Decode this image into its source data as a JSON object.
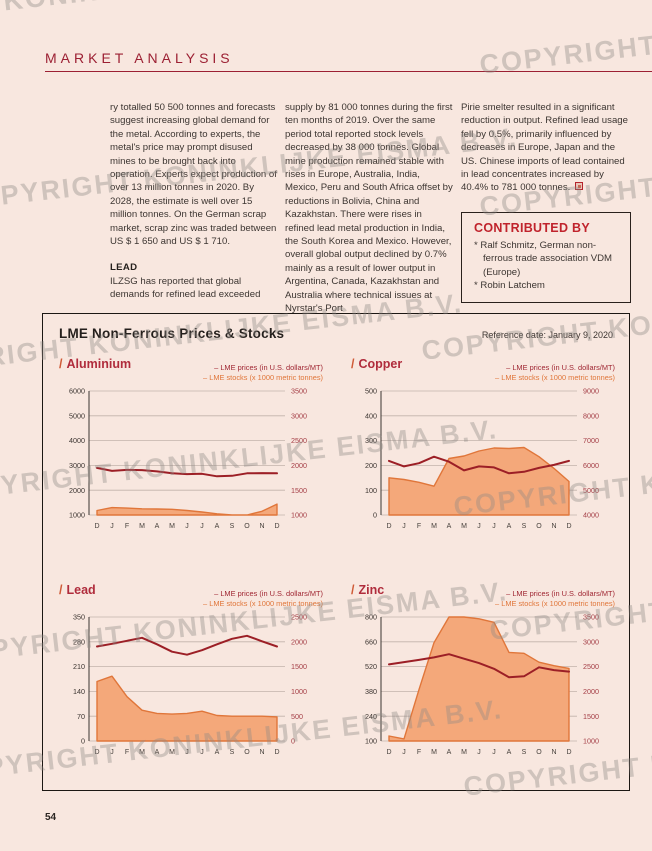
{
  "page": {
    "number": "54",
    "watermark": "COPYRIGHT KONINKLIJKE EISMA B.V."
  },
  "header": {
    "title": "MARKET ANALYSIS"
  },
  "article": {
    "col1_p1": "ry totalled 50 500 tonnes and forecasts suggest increasing global demand for the metal. According to experts, the metal's price may prompt disused mines to be brought back into operation. Experts expect production of over 13 million tonnes in 2020. By 2028, the estimate is well over 15 million tonnes. On the German scrap market, scrap zinc was traded between US $ 1 650 and US $ 1 710.",
    "col1_heading": "LEAD",
    "col1_p2": "ILZSG has reported that global demands for refined lead exceeded",
    "col2_p1": "supply by 81 000 tonnes during the first ten months of 2019. Over the same period total reported stock levels decreased by 38 000 tonnes. Global mine production remained stable with rises in Europe, Australia, India, Mexico, Peru and South Africa offset by reductions in Bolivia, China and Kazakhstan. There were rises in refined lead metal production in India, the South Korea and Mexico. However, overall global output declined by 0.7% mainly as a result of lower output in Argentina, Canada, Kazakhstan and Australia where technical issues at Nyrstar's Port",
    "col3_p1": "Pirie smelter resulted in a significant reduction in output. Refined lead usage fell by 0.5%, primarily influenced by decreases in Europe, Japan and the US. Chinese imports of lead contained in lead concentrates increased by 40.4% to 781 000 tonnes.",
    "contributed": {
      "title": "CONTRIBUTED BY",
      "bullet": "*",
      "items": [
        "Ralf Schmitz, German non-ferrous trade association VDM (Europe)",
        "Robin Latchem"
      ]
    }
  },
  "panel": {
    "title": "LME Non-Ferrous Prices & Stocks",
    "reference_date": "Reference date: January 9, 2020",
    "chart_title_prefix": "/",
    "legend_price": "– LME prices (in U.S. dollars/MT)",
    "legend_stocks": "– LME stocks (x 1000 metric tonnes)"
  },
  "colors": {
    "background": "#f8e7df",
    "accent_red": "#9c2033",
    "price_line": "#9c1f26",
    "chart_name_red": "#b02c3c",
    "stocks_orange": "#e0763a",
    "area_fill": "#f4a87a",
    "right_axis_label": "#a53f47",
    "left_axis_label": "#3c3531",
    "grid": "#c2b3ab",
    "axis_line": "#3a3530"
  },
  "chart_data": [
    {
      "type": "area",
      "name": "Aluminium",
      "x": [
        "D",
        "J",
        "F",
        "M",
        "A",
        "M",
        "J",
        "J",
        "A",
        "S",
        "O",
        "N",
        "D"
      ],
      "left_axis": {
        "label": "LME stocks (x 1000 metric tonnes)",
        "min": 1000,
        "max": 6000,
        "ticks": [
          6000,
          5000,
          4000,
          3000,
          2000,
          1000
        ]
      },
      "right_axis": {
        "label": "LME prices (in U.S. dollars/MT)",
        "min": 1000,
        "max": 3500,
        "ticks": [
          3500,
          3000,
          2500,
          2000,
          1500,
          1000
        ]
      },
      "series": [
        {
          "name": "LME stocks (x 1000 metric tonnes)",
          "type": "area",
          "axis": "left",
          "values": [
            1180,
            1300,
            1280,
            1250,
            1240,
            1230,
            1180,
            1120,
            1050,
            1000,
            1000,
            1150,
            1440
          ]
        },
        {
          "name": "LME prices (in U.S. dollars/MT)",
          "type": "line",
          "axis": "right",
          "values": [
            1950,
            1890,
            1910,
            1905,
            1880,
            1840,
            1825,
            1830,
            1780,
            1790,
            1840,
            1845,
            1840
          ]
        }
      ]
    },
    {
      "type": "area",
      "name": "Copper",
      "x": [
        "D",
        "J",
        "F",
        "M",
        "A",
        "M",
        "J",
        "J",
        "A",
        "S",
        "O",
        "N",
        "D"
      ],
      "left_axis": {
        "label": "LME stocks (x 1000 metric tonnes)",
        "min": 0,
        "max": 500,
        "ticks": [
          500,
          400,
          300,
          200,
          100,
          0
        ]
      },
      "right_axis": {
        "label": "LME prices (in U.S. dollars/MT)",
        "min": 4000,
        "max": 9000,
        "ticks": [
          9000,
          8000,
          7000,
          6000,
          5000,
          4000
        ]
      },
      "series": [
        {
          "name": "LME stocks (x 1000 metric tonnes)",
          "type": "area",
          "axis": "left",
          "values": [
            150,
            143,
            132,
            116,
            228,
            238,
            258,
            270,
            268,
            272,
            235,
            188,
            135
          ]
        },
        {
          "name": "LME prices (in U.S. dollars/MT)",
          "type": "line",
          "axis": "right",
          "values": [
            6180,
            5960,
            6090,
            6350,
            6150,
            5800,
            5960,
            5920,
            5680,
            5740,
            5900,
            6020,
            6180
          ]
        }
      ]
    },
    {
      "type": "area",
      "name": "Lead",
      "x": [
        "D",
        "J",
        "F",
        "M",
        "A",
        "M",
        "J",
        "J",
        "A",
        "S",
        "O",
        "N",
        "D"
      ],
      "left_axis": {
        "label": "LME stocks (x 1000 metric tonnes)",
        "min": 0,
        "max": 350,
        "ticks": [
          350,
          280,
          210,
          140,
          70,
          0
        ]
      },
      "right_axis": {
        "label": "LME prices (in U.S. dollars/MT)",
        "min": 0,
        "max": 2500,
        "ticks": [
          2500,
          2000,
          1500,
          1000,
          500,
          0
        ]
      },
      "series": [
        {
          "name": "LME stocks (x 1000 metric tonnes)",
          "type": "area",
          "axis": "left",
          "values": [
            168,
            183,
            125,
            87,
            78,
            76,
            78,
            84,
            72,
            70,
            70,
            70,
            68
          ]
        },
        {
          "name": "LME prices (in U.S. dollars/MT)",
          "type": "line",
          "axis": "right",
          "values": [
            1905,
            1960,
            2020,
            2080,
            1950,
            1800,
            1740,
            1830,
            1950,
            2060,
            2120,
            2010,
            1905
          ]
        }
      ]
    },
    {
      "type": "area",
      "name": "Zinc",
      "x": [
        "D",
        "J",
        "F",
        "M",
        "A",
        "M",
        "J",
        "J",
        "A",
        "S",
        "O",
        "N",
        "D"
      ],
      "left_axis": {
        "label": "LME stocks (x 1000 metric tonnes)",
        "min": 100,
        "max": 800,
        "ticks": [
          800,
          660,
          520,
          380,
          240,
          100
        ]
      },
      "right_axis": {
        "label": "LME prices (in U.S. dollars/MT)",
        "min": 1000,
        "max": 3500,
        "ticks": [
          3500,
          3000,
          2500,
          2000,
          1500,
          1000
        ]
      },
      "series": [
        {
          "name": "LME stocks (x 1000 metric tonnes)",
          "type": "area",
          "axis": "left",
          "values": [
            128,
            112,
            390,
            655,
            800,
            800,
            790,
            770,
            600,
            595,
            545,
            525,
            510
          ]
        },
        {
          "name": "LME prices (in U.S. dollars/MT)",
          "type": "line",
          "axis": "right",
          "values": [
            2545,
            2590,
            2635,
            2685,
            2750,
            2660,
            2570,
            2455,
            2285,
            2305,
            2485,
            2430,
            2400
          ]
        }
      ]
    }
  ]
}
